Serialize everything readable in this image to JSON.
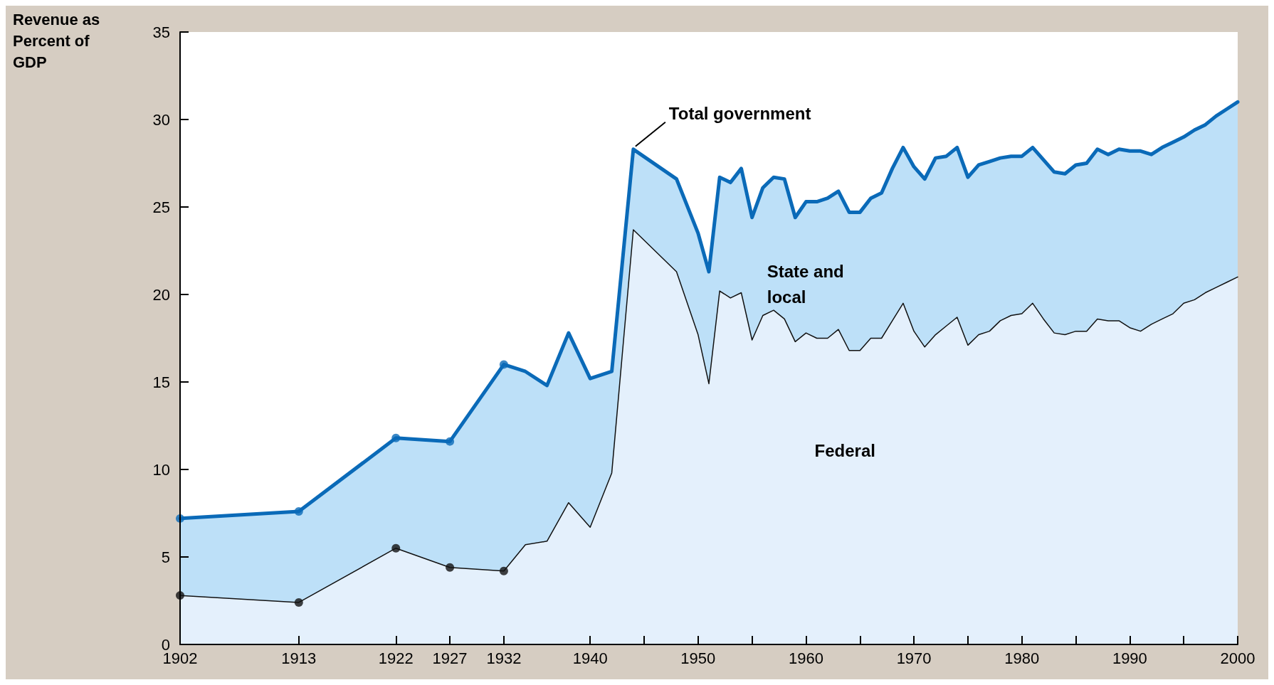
{
  "chart_data": {
    "type": "area",
    "ylabel": "Revenue as Percent of GDP",
    "xlim": [
      1902,
      2000
    ],
    "ylim": [
      0,
      35
    ],
    "xticks": [
      1902,
      1913,
      1922,
      1927,
      1932,
      1940,
      {
        "value": 1945,
        "label": null
      },
      1950,
      {
        "value": 1955,
        "label": null
      },
      1960,
      {
        "value": 1965,
        "label": null
      },
      1970,
      {
        "value": 1975,
        "label": null
      },
      1980,
      {
        "value": 1985,
        "label": null
      },
      1990,
      {
        "value": 1995,
        "label": null
      },
      2000
    ],
    "yticks": [
      0,
      5,
      10,
      15,
      20,
      25,
      30,
      35
    ],
    "grid": false,
    "legend": false,
    "marker": "none",
    "annotations": [
      "State and local"
    ],
    "series": [
      {
        "name": "Total government",
        "color": "#0a6ab8",
        "x": [
          1902,
          1913,
          1922,
          1927,
          1932,
          1934,
          1936,
          1938,
          1940,
          1942,
          1944,
          1948,
          1950,
          1951,
          1952,
          1953,
          1954,
          1955,
          1956,
          1957,
          1958,
          1959,
          1960,
          1961,
          1962,
          1963,
          1964,
          1965,
          1966,
          1967,
          1968,
          1969,
          1970,
          1971,
          1972,
          1973,
          1974,
          1975,
          1976,
          1977,
          1978,
          1979,
          1980,
          1981,
          1982,
          1983,
          1984,
          1985,
          1986,
          1987,
          1988,
          1989,
          1990,
          1991,
          1992,
          1993,
          1994,
          1995,
          1996,
          1997,
          1998,
          1999,
          2000
        ],
        "values": [
          7.2,
          7.6,
          11.8,
          11.6,
          16.0,
          15.6,
          14.8,
          17.8,
          15.2,
          15.6,
          28.3,
          26.6,
          23.5,
          21.3,
          26.7,
          26.4,
          27.2,
          24.4,
          26.1,
          26.7,
          26.6,
          24.4,
          25.3,
          25.3,
          25.5,
          25.9,
          24.7,
          24.7,
          25.5,
          25.8,
          27.2,
          28.4,
          27.3,
          26.6,
          27.8,
          27.9,
          28.4,
          26.7,
          27.4,
          27.6,
          27.8,
          27.9,
          27.9,
          28.4,
          27.7,
          27.0,
          26.9,
          27.4,
          27.5,
          28.3,
          28.0,
          28.3,
          28.2,
          28.2,
          28.0,
          28.4,
          28.7,
          29.0,
          29.4,
          29.7,
          30.2,
          30.6,
          31.0
        ]
      },
      {
        "name": "Federal",
        "color": "#111111",
        "x": [
          1902,
          1913,
          1922,
          1927,
          1932,
          1934,
          1936,
          1938,
          1940,
          1942,
          1944,
          1948,
          1950,
          1951,
          1952,
          1953,
          1954,
          1955,
          1956,
          1957,
          1958,
          1959,
          1960,
          1961,
          1962,
          1963,
          1964,
          1965,
          1966,
          1967,
          1968,
          1969,
          1970,
          1971,
          1972,
          1973,
          1974,
          1975,
          1976,
          1977,
          1978,
          1979,
          1980,
          1981,
          1982,
          1983,
          1984,
          1985,
          1986,
          1987,
          1988,
          1989,
          1990,
          1991,
          1992,
          1993,
          1994,
          1995,
          1996,
          1997,
          1998,
          1999,
          2000
        ],
        "values": [
          2.8,
          2.4,
          5.5,
          4.4,
          4.2,
          5.7,
          5.9,
          8.1,
          6.7,
          9.8,
          23.7,
          21.3,
          17.7,
          14.9,
          20.2,
          19.8,
          20.1,
          17.4,
          18.8,
          19.1,
          18.6,
          17.3,
          17.8,
          17.5,
          17.5,
          18.0,
          16.8,
          16.8,
          17.5,
          17.5,
          18.5,
          19.5,
          17.9,
          17.0,
          17.7,
          18.2,
          18.7,
          17.1,
          17.7,
          17.9,
          18.5,
          18.8,
          18.9,
          19.5,
          18.6,
          17.8,
          17.7,
          17.9,
          17.9,
          18.6,
          18.5,
          18.5,
          18.1,
          17.9,
          18.3,
          18.6,
          18.9,
          19.5,
          19.7,
          20.1,
          20.4,
          20.7,
          21.0
        ]
      },
      {
        "type": "scatter",
        "marker": "circle",
        "color": "#0a6ab8",
        "x": [
          1902,
          1913,
          1922,
          1927,
          1932
        ],
        "values": [
          7.2,
          7.6,
          11.8,
          11.6,
          16.0
        ]
      },
      {
        "type": "scatter",
        "marker": "circle",
        "color": "#111111",
        "x": [
          1902,
          1913,
          1922,
          1927,
          1932
        ],
        "values": [
          2.8,
          2.4,
          5.5,
          4.4,
          4.2
        ]
      }
    ]
  }
}
